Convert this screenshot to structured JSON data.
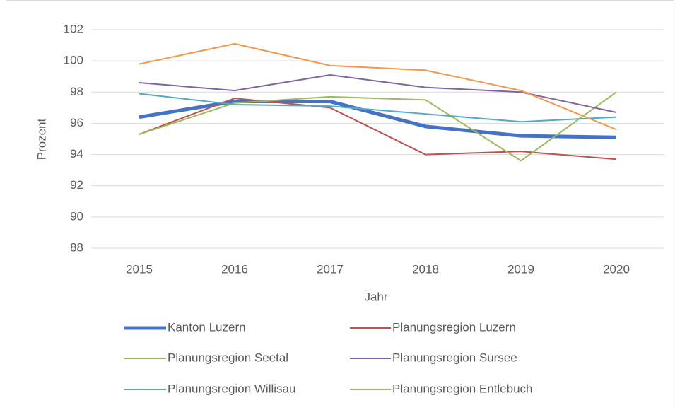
{
  "chart_data": {
    "type": "line",
    "categories": [
      "2015",
      "2016",
      "2017",
      "2018",
      "2019",
      "2020"
    ],
    "series": [
      {
        "name": "Kanton Luzern",
        "color": "#4472c4",
        "width": 5,
        "values": [
          96.4,
          97.4,
          97.4,
          95.8,
          95.2,
          95.1
        ]
      },
      {
        "name": "Planungsregion Luzern",
        "color": "#c0504d",
        "width": 2,
        "values": [
          95.3,
          97.6,
          97.0,
          94.0,
          94.2,
          93.7
        ]
      },
      {
        "name": "Planungsregion Seetal",
        "color": "#9bbb59",
        "width": 2,
        "values": [
          95.3,
          97.3,
          97.7,
          97.5,
          93.6,
          98.0
        ]
      },
      {
        "name": "Planungsregion Sursee",
        "color": "#8064a2",
        "width": 2,
        "values": [
          98.6,
          98.1,
          99.1,
          98.3,
          98.0,
          96.7
        ]
      },
      {
        "name": "Planungsregion Willisau",
        "color": "#4bacc6",
        "width": 2,
        "values": [
          97.9,
          97.2,
          97.1,
          96.6,
          96.1,
          96.4
        ]
      },
      {
        "name": "Planungsregion Entlebuch",
        "color": "#f79646",
        "width": 2,
        "values": [
          99.8,
          101.1,
          99.7,
          99.4,
          98.1,
          95.6
        ]
      }
    ],
    "x_label": "Jahr",
    "y_label": "Prozent",
    "ylim": [
      88,
      102
    ],
    "yticks": [
      88,
      90,
      92,
      94,
      96,
      98,
      100,
      102
    ],
    "grid": true,
    "legend": "bottom"
  }
}
